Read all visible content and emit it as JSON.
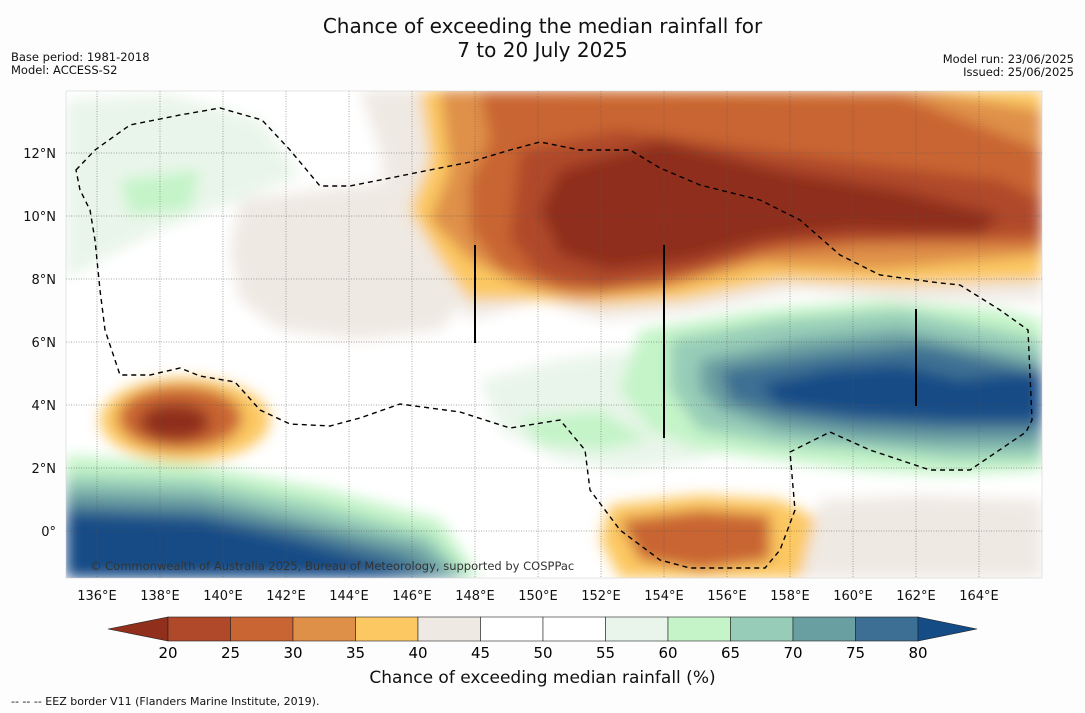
{
  "title": {
    "line1": "Chance of exceeding the median rainfall for",
    "line2": "7 to 20 July 2025"
  },
  "meta_left": {
    "base_period": "Base period: 1981-2018",
    "model": "Model: ACCESS-S2"
  },
  "meta_right": {
    "model_run": "Model run: 23/06/2025",
    "issued": "Issued: 25/06/2025"
  },
  "map": {
    "lon_labels": [
      "136°E",
      "138°E",
      "140°E",
      "142°E",
      "144°E",
      "146°E",
      "148°E",
      "150°E",
      "152°E",
      "154°E",
      "156°E",
      "158°E",
      "160°E",
      "162°E",
      "164°E"
    ],
    "lat_labels": [
      "12°N",
      "10°N",
      "8°N",
      "6°N",
      "4°N",
      "2°N",
      "0°"
    ],
    "lon_range": [
      135,
      166
    ],
    "lat_range": [
      -1.5,
      13.9
    ],
    "grid": true,
    "copyright": "© Commonwealth of Australia 2025, Bureau of Meteorology, supported by COSPPac"
  },
  "colorbar": {
    "title": "Chance of exceeding median rainfall (%)",
    "ticks": [
      "20",
      "25",
      "30",
      "35",
      "40",
      "45",
      "50",
      "55",
      "60",
      "65",
      "70",
      "75",
      "80"
    ],
    "colors": [
      "#8f2f1c",
      "#b0492a",
      "#c96533",
      "#df9048",
      "#fcc862",
      "#efe9e3",
      "#ffffff",
      "#ffffff",
      "#e9f5ea",
      "#c4f4c8",
      "#97cdb8",
      "#6a9fa2",
      "#3c6f93",
      "#154c86"
    ]
  },
  "footer": "--  --  -- EEZ border V11 (Flanders Marine Institute, 2019)."
}
